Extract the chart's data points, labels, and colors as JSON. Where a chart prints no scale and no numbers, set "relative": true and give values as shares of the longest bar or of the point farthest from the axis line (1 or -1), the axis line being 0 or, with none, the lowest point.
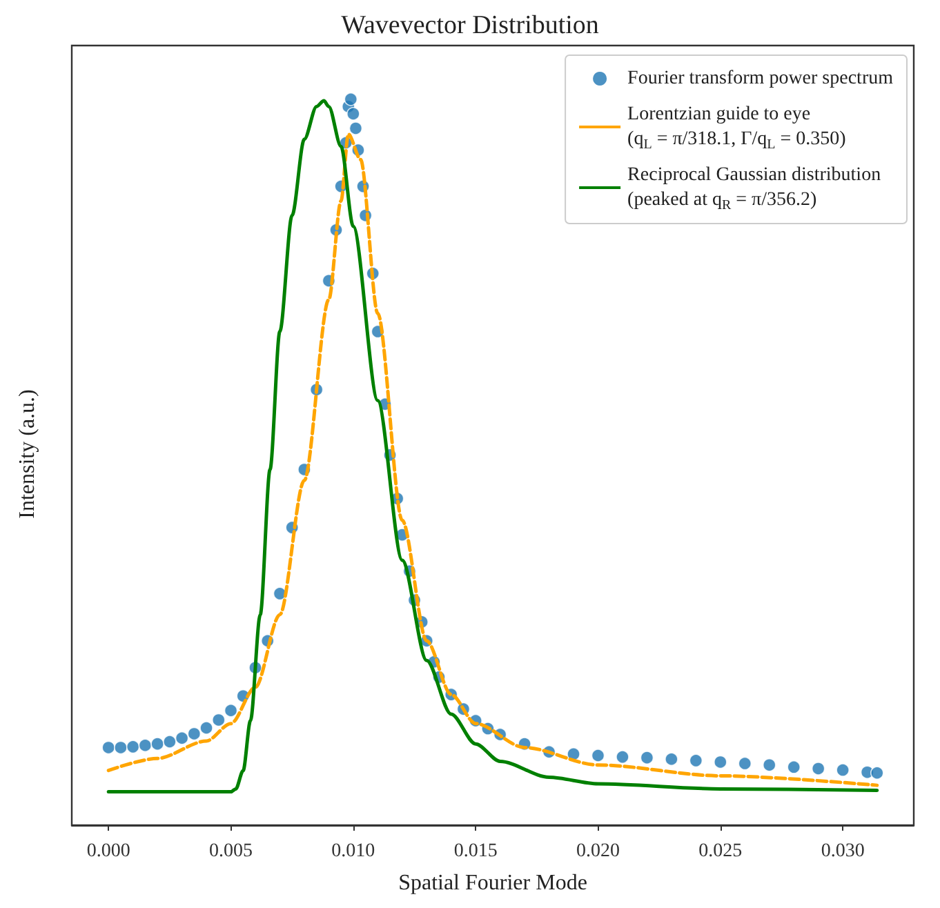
{
  "chart_data": {
    "type": "scatter",
    "title": "Wavevector Distribution",
    "xlabel": "Spatial Fourier Mode",
    "ylabel": "Intensity (a.u.)",
    "relative": true,
    "xlim": [
      -0.0015,
      0.0329
    ],
    "xticks": [
      {
        "value": 0,
        "label": "0.000"
      },
      {
        "value": 0.005,
        "label": "0.005"
      },
      {
        "value": 0.01,
        "label": "0.010"
      },
      {
        "value": 0.015,
        "label": "0.015"
      },
      {
        "value": 0.02,
        "label": "0.020"
      },
      {
        "value": 0.025,
        "label": "0.025"
      },
      {
        "value": 0.03,
        "label": "0.030"
      }
    ],
    "grid": false,
    "legend": "top right",
    "series": [
      {
        "name": "Fourier transform power spectrum",
        "color": "#1f77b4",
        "marker": "circle",
        "x": [
          0,
          0.0005,
          0.001,
          0.0015,
          0.002,
          0.0025,
          0.003,
          0.0035,
          0.004,
          0.0045,
          0.005,
          0.0055,
          0.006,
          0.0065,
          0.007,
          0.0075,
          0.008,
          0.0085,
          0.009,
          0.0093,
          0.0095,
          0.0097,
          0.0098,
          0.0099,
          0.01,
          0.0101,
          0.0102,
          0.0104,
          0.0105,
          0.0108,
          0.011,
          0.0113,
          0.0115,
          0.0118,
          0.012,
          0.0123,
          0.0125,
          0.0128,
          0.013,
          0.0133,
          0.0135,
          0.014,
          0.0145,
          0.015,
          0.0155,
          0.016,
          0.017,
          0.018,
          0.019,
          0.02,
          0.021,
          0.022,
          0.023,
          0.024,
          0.025,
          0.026,
          0.027,
          0.028,
          0.029,
          0.03,
          0.031,
          0.0314
        ],
        "values": [
          0.107,
          0.107,
          0.108,
          0.11,
          0.112,
          0.115,
          0.12,
          0.126,
          0.134,
          0.145,
          0.158,
          0.178,
          0.217,
          0.254,
          0.319,
          0.41,
          0.49,
          0.6,
          0.75,
          0.82,
          0.88,
          0.94,
          0.99,
          1.0,
          0.98,
          0.96,
          0.93,
          0.88,
          0.84,
          0.76,
          0.68,
          0.58,
          0.51,
          0.45,
          0.4,
          0.35,
          0.31,
          0.28,
          0.254,
          0.225,
          0.204,
          0.18,
          0.16,
          0.144,
          0.133,
          0.125,
          0.112,
          0.101,
          0.098,
          0.096,
          0.094,
          0.093,
          0.091,
          0.089,
          0.087,
          0.085,
          0.083,
          0.08,
          0.078,
          0.076,
          0.073,
          0.072
        ]
      },
      {
        "type": "line",
        "name": "Lorentzian guide to eye\n(q$_{L}$ = π/318.1, Γ/q$_{L}$ = 0.350)",
        "color": "#ffa500",
        "line_style": "dashed",
        "x": [
          0,
          0.002,
          0.004,
          0.005,
          0.006,
          0.007,
          0.008,
          0.009,
          0.0095,
          0.0098,
          0.0103,
          0.011,
          0.012,
          0.013,
          0.014,
          0.015,
          0.017,
          0.02,
          0.025,
          0.0314
        ],
        "values": [
          0.0755,
          0.092,
          0.116,
          0.14,
          0.19,
          0.29,
          0.475,
          0.724,
          0.86,
          0.952,
          0.917,
          0.705,
          0.42,
          0.254,
          0.18,
          0.14,
          0.107,
          0.083,
          0.068,
          0.055
        ]
      },
      {
        "type": "line",
        "name": "Reciprocal Gaussian distribution\n(peaked at q$_{R}$ = π/356.2)",
        "color": "#008000",
        "line_style": "solid",
        "x": [
          0,
          0.005,
          0.0052,
          0.0055,
          0.0058,
          0.0062,
          0.0066,
          0.007,
          0.0075,
          0.008,
          0.0085,
          0.0088,
          0.009,
          0.0095,
          0.01,
          0.011,
          0.012,
          0.013,
          0.014,
          0.015,
          0.016,
          0.018,
          0.02,
          0.025,
          0.0314
        ],
        "values": [
          0.046,
          0.046,
          0.05,
          0.075,
          0.144,
          0.29,
          0.49,
          0.68,
          0.84,
          0.945,
          0.99,
          0.998,
          0.99,
          0.935,
          0.825,
          0.585,
          0.365,
          0.227,
          0.153,
          0.112,
          0.088,
          0.066,
          0.057,
          0.05,
          0.048
        ]
      }
    ]
  }
}
